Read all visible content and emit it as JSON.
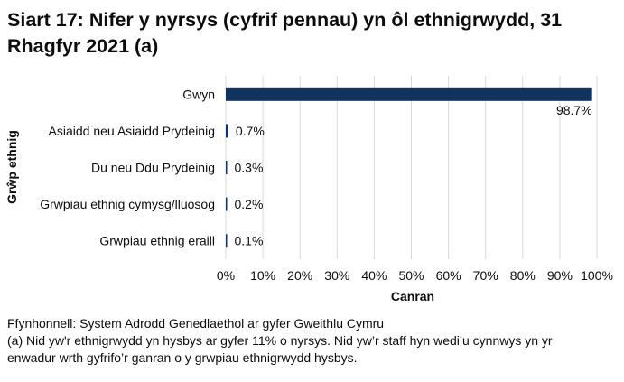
{
  "chart_data": {
    "type": "bar",
    "orientation": "horizontal",
    "title": "Siart 17: Nifer y nyrsys (cyfrif pennau) yn ôl ethnigrwydd, 31 Rhagfyr 2021 (a)",
    "xlabel": "Canran",
    "ylabel": "Grŵp ethnig",
    "categories": [
      "Gwyn",
      "Asiaidd neu Asiaidd Prydeinig",
      "Du neu Ddu Prydeinig",
      "Grwpiau ethnig cymysg/lluosog",
      "Grwpiau ethnig eraill"
    ],
    "values": [
      98.7,
      0.7,
      0.3,
      0.2,
      0.1
    ],
    "value_labels": [
      "98.7%",
      "0.7%",
      "0.3%",
      "0.2%",
      "0.1%"
    ],
    "xlim": [
      0,
      100
    ],
    "xticks": [
      0,
      10,
      20,
      30,
      40,
      50,
      60,
      70,
      80,
      90,
      100
    ],
    "xtick_labels": [
      "0%",
      "10%",
      "20%",
      "30%",
      "40%",
      "50%",
      "60%",
      "70%",
      "80%",
      "90%",
      "100%"
    ],
    "grid": "vertical",
    "legend": "none",
    "bar_color": "#12325f",
    "grid_color": "#d9d9d9"
  },
  "footer": {
    "source": "Ffynhonnell: System Adrodd Genedlaethol ar gyfer Gweithlu Cymru",
    "note_line1": "(a) Nid yw'r ethnigrwydd yn hysbys ar gyfer 11% o nyrsys. Nid yw’r staff hyn wedi’u cynnwys yn yr",
    "note_line2": "enwadur wrth gyfrifo’r ganran o y grwpiau ethnigrwydd hysbys."
  }
}
